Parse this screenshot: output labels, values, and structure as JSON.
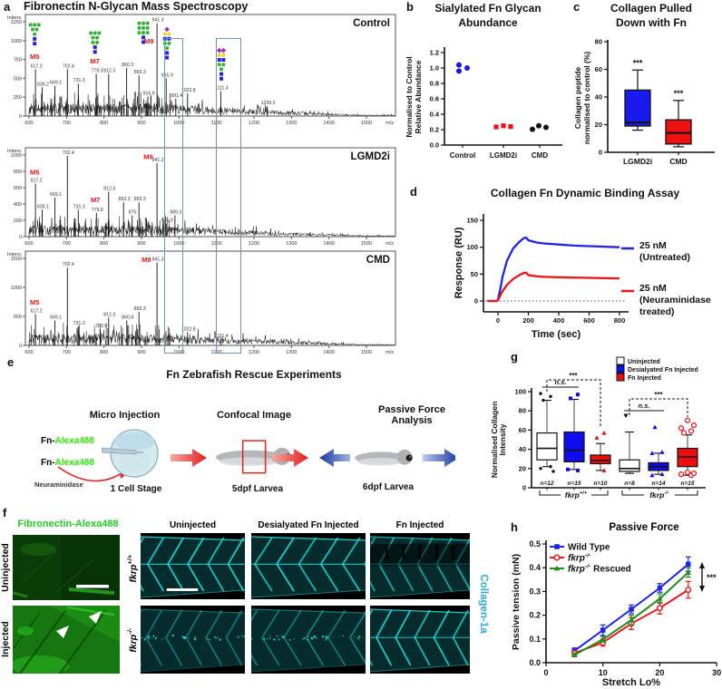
{
  "panels": {
    "a": {
      "label": "a",
      "title": "Fibronectin N-Glycan Mass Spectroscopy"
    },
    "b": {
      "label": "b",
      "title1": "Sialylated Fn Glycan",
      "title2": "Abundance"
    },
    "c": {
      "label": "c",
      "title1": "Collagen Pulled",
      "title2": "Down with Fn"
    },
    "d": {
      "label": "d"
    },
    "e": {
      "label": "e",
      "title": "Fn Zebrafish Rescue Experiments",
      "step1_title": "Micro Injection",
      "fn_pre": "Fn-",
      "fn_dye": "Alexa488",
      "enzyme": "Neuraminidase",
      "stage1": "1 Cell Stage",
      "step2_title": "Confocal Image",
      "stage2": "5dpf Larvea",
      "step3_title1": "Passive Force",
      "step3_title2": "Analysis",
      "stage3": "6dpf Larvea"
    },
    "f": {
      "label": "f",
      "green_title": "Fibronectin-Alexa488",
      "row1": "Uninjected",
      "row2": "Injected",
      "col1": "Uninjected",
      "col2": "Desialyated Fn Injected",
      "col3": "Fn Injected",
      "geno1_base": "fkrp",
      "geno1_sup": "+/+",
      "geno2_base": "fkrp",
      "geno2_sup": "-/-",
      "stain": "Collagen-1a"
    },
    "g": {
      "label": "g"
    },
    "h": {
      "label": "h"
    }
  },
  "glycan_shapes": {
    "M5": [
      [
        "g",
        "g",
        "g"
      ],
      [
        "g",
        "g"
      ],
      [
        "g"
      ],
      [
        "b"
      ],
      [
        "b"
      ]
    ],
    "M7": [
      [
        "g",
        "g",
        "g"
      ],
      [
        "g",
        "g"
      ],
      [
        "g",
        "g"
      ],
      [
        "b"
      ],
      [
        "b"
      ]
    ],
    "M9": [
      [
        "g",
        "g",
        "g"
      ],
      [
        "g",
        "g",
        "g"
      ],
      [
        "g",
        "g",
        "g"
      ],
      [
        "b"
      ],
      [
        "b"
      ]
    ],
    "S1": [
      [
        "p"
      ],
      [
        "y",
        "y"
      ],
      [
        "b",
        "b"
      ],
      [
        "g",
        "g"
      ],
      [
        "g"
      ],
      [
        "b"
      ],
      [
        "b"
      ]
    ],
    "S2": [
      [
        "p",
        "p"
      ],
      [
        "y",
        "y"
      ],
      [
        "b",
        "b"
      ],
      [
        "g",
        "g"
      ],
      [
        "g"
      ],
      [
        "b"
      ],
      [
        "b"
      ]
    ]
  },
  "chart_data": [
    {
      "id": "spec_control",
      "type": "line",
      "subtype": "mass_spectrum",
      "sample": "Control",
      "ylabel": "Intens.",
      "xlabel": "m/z",
      "xlim": [
        600,
        1580
      ],
      "ylim": [
        0,
        1250
      ],
      "yticks": [
        0,
        250,
        500,
        750,
        1000,
        1250
      ],
      "xticks": [
        600,
        700,
        800,
        900,
        1000,
        1100,
        1200,
        1300,
        1400,
        1500
      ],
      "peaks": [
        {
          "mz": 617.2,
          "i": 620,
          "label": "617.2"
        },
        {
          "mz": 635.2,
          "i": 380,
          "label": "635.2"
        },
        {
          "mz": 669.1,
          "i": 400,
          "label": "669.1"
        },
        {
          "mz": 702.4,
          "i": 620,
          "label": "702.4"
        },
        {
          "mz": 731.3,
          "i": 430,
          "label": "731.3"
        },
        {
          "mz": 779.3,
          "i": 560,
          "label": "779.3"
        },
        {
          "mz": 812.3,
          "i": 560,
          "label": "812.3"
        },
        {
          "mz": 860.3,
          "i": 640,
          "label": "860.3"
        },
        {
          "mz": 893.3,
          "i": 540,
          "label": "893.3"
        },
        {
          "mz": 916.9,
          "i": 260,
          "label": "916.9"
        },
        {
          "mz": 941.3,
          "i": 1230,
          "label": "941.3"
        },
        {
          "mz": 965.9,
          "i": 500,
          "label": "965.9"
        },
        {
          "mz": 991.4,
          "i": 230,
          "label": "991.4"
        },
        {
          "mz": 1022.8,
          "i": 300,
          "label": "1022.8"
        },
        {
          "mz": 1111.4,
          "i": 330,
          "label": "1111.4"
        },
        {
          "mz": 1235.5,
          "i": 130,
          "label": "1235.5"
        }
      ],
      "annotations": [
        {
          "text": "M5",
          "mz": 615,
          "v": 760
        },
        {
          "text": "M7",
          "mz": 776,
          "v": 700
        },
        {
          "text": "M9",
          "mz": 920,
          "v": 960
        }
      ],
      "glycans": [
        {
          "type": "M5",
          "mz": 615,
          "v": 1210
        },
        {
          "type": "M7",
          "mz": 776,
          "v": 1100
        },
        {
          "type": "M9",
          "mz": 905,
          "v": 1230
        },
        {
          "type": "S1",
          "mz": 968,
          "v": 1150
        },
        {
          "type": "S2",
          "mz": 1113,
          "v": 870
        }
      ]
    },
    {
      "id": "spec_lgmd2i",
      "type": "line",
      "subtype": "mass_spectrum",
      "sample": "LGMD2i",
      "ylabel": "Intens.",
      "xlabel": "m/z",
      "xlim": [
        600,
        1580
      ],
      "ylim": [
        0,
        1000
      ],
      "yticks": [
        0,
        200,
        400,
        600,
        800,
        1000
      ],
      "xticks": [
        600,
        700,
        800,
        900,
        1000,
        1100,
        1200,
        1300,
        1400,
        1500
      ],
      "peaks": [
        {
          "mz": 617.2,
          "i": 650,
          "label": "617.2"
        },
        {
          "mz": 635.1,
          "i": 330,
          "label": "635.1"
        },
        {
          "mz": 669.1,
          "i": 480,
          "label": "669.1"
        },
        {
          "mz": 702.4,
          "i": 990,
          "label": "702.4"
        },
        {
          "mz": 731.3,
          "i": 330,
          "label": "731.3"
        },
        {
          "mz": 779.8,
          "i": 290,
          "label": "779.8"
        },
        {
          "mz": 812.3,
          "i": 550,
          "label": "812.3"
        },
        {
          "mz": 852.2,
          "i": 420,
          "label": "852.2"
        },
        {
          "mz": 875.0,
          "i": 260,
          "label": "875."
        },
        {
          "mz": 893.3,
          "i": 420,
          "label": "893.3"
        },
        {
          "mz": 941.3,
          "i": 900,
          "label": "941.3"
        },
        {
          "mz": 965.9,
          "i": 160,
          "label": "965.9"
        },
        {
          "mz": 989.3,
          "i": 260,
          "label": "989.3"
        }
      ],
      "annotations": [
        {
          "text": "M5",
          "mz": 615,
          "v": 760
        },
        {
          "text": "M7",
          "mz": 777,
          "v": 420
        },
        {
          "text": "M9",
          "mz": 918,
          "v": 950
        }
      ],
      "glycans": []
    },
    {
      "id": "spec_cmd",
      "type": "line",
      "subtype": "mass_spectrum",
      "sample": "CMD",
      "ylabel": "Intens.",
      "xlabel": "m/z",
      "xlim": [
        600,
        1580
      ],
      "ylim": [
        0,
        1500
      ],
      "yticks": [
        0,
        500,
        1000,
        1500
      ],
      "xticks": [
        600,
        700,
        800,
        900,
        1000,
        1100,
        1200,
        1300,
        1400,
        1500
      ],
      "peaks": [
        {
          "mz": 617.2,
          "i": 540,
          "label": "617.2"
        },
        {
          "mz": 669.1,
          "i": 430,
          "label": "669.1"
        },
        {
          "mz": 702.4,
          "i": 1340,
          "label": "702.4"
        },
        {
          "mz": 731.3,
          "i": 330,
          "label": "731.3"
        },
        {
          "mz": 789.9,
          "i": 280,
          "label": "789.9"
        },
        {
          "mz": 812.3,
          "i": 480,
          "label": "812.3"
        },
        {
          "mz": 860.8,
          "i": 430,
          "label": "860.8"
        },
        {
          "mz": 893.3,
          "i": 580,
          "label": "893.3"
        },
        {
          "mz": 941.3,
          "i": 1430,
          "label": "941.3"
        },
        {
          "mz": 1022.8,
          "i": 230,
          "label": "1022.8"
        },
        {
          "mz": 1111.4,
          "i": 110,
          "label": "1111.4"
        }
      ],
      "annotations": [
        {
          "text": "M5",
          "mz": 615,
          "v": 700
        },
        {
          "text": "M9",
          "mz": 913,
          "v": 1440
        }
      ],
      "glycans": []
    },
    {
      "id": "b",
      "type": "scatter",
      "title": "Sialylated Fn Glycan Abundance",
      "ylabel_lines": [
        "Normalised to Control",
        "Relative Abundance"
      ],
      "ylim": [
        0,
        1.2
      ],
      "yticks": [
        "0.0",
        "0.2",
        "0.4",
        "0.6",
        "0.8",
        "1.0",
        "1.2"
      ],
      "categories": [
        "Control",
        "LGMD2i",
        "CMD"
      ],
      "series": [
        {
          "name": "Control",
          "color": "#1616e6",
          "marker": "circle",
          "values": [
            1.04,
            0.96,
            1.0
          ]
        },
        {
          "name": "LGMD2i",
          "color": "#ee1111",
          "marker": "square",
          "values": [
            0.235,
            0.25,
            0.24
          ]
        },
        {
          "name": "CMD",
          "color": "#111111",
          "marker": "circle",
          "values": [
            0.205,
            0.25,
            0.23
          ]
        }
      ]
    },
    {
      "id": "c",
      "type": "box",
      "title": "Collagen Pulled Down with Fn",
      "ylabel_lines": [
        "Collagen peptide",
        "normalised to control (%)"
      ],
      "ylim": [
        0,
        80
      ],
      "yticks": [
        0,
        20,
        40,
        60,
        80
      ],
      "boxes": [
        {
          "name": "LGMD2i",
          "color": "#1a1aee",
          "low": 16,
          "q1": 19,
          "median": 21.5,
          "q3": 45,
          "high": 59.5,
          "sig": "***"
        },
        {
          "name": "CMD",
          "color": "#ee1111",
          "low": 4,
          "q1": 6,
          "median": 14,
          "q3": 23.5,
          "high": 37.5,
          "sig": "***"
        }
      ]
    },
    {
      "id": "d",
      "type": "line",
      "title": "Collagen Fn Dynamic Binding Assay",
      "xlabel": "Time (sec)",
      "ylabel": "Response (RU)",
      "xlim": [
        -100,
        830
      ],
      "ylim": [
        -25,
        150
      ],
      "xticks": [
        0,
        200,
        400,
        600,
        800
      ],
      "yticks": [
        0,
        50,
        100,
        150
      ],
      "series": [
        {
          "name": "25 nM (Untreated)",
          "legend_lines": [
            "25 nM",
            "(Untreated)"
          ],
          "color": "#1c24e8",
          "points": [
            [
              -70,
              0
            ],
            [
              -10,
              0
            ],
            [
              0,
              2
            ],
            [
              15,
              22
            ],
            [
              30,
              45
            ],
            [
              60,
              75
            ],
            [
              100,
              98
            ],
            [
              140,
              110
            ],
            [
              170,
              117
            ],
            [
              185,
              118
            ],
            [
              200,
              113
            ],
            [
              250,
              109
            ],
            [
              300,
              107
            ],
            [
              400,
              105
            ],
            [
              500,
              103
            ],
            [
              600,
              102
            ],
            [
              700,
              101
            ],
            [
              800,
              100
            ]
          ]
        },
        {
          "name": "25 nM (Neuraminidase treated)",
          "legend_lines": [
            "25 nM",
            "(Neuraminidase",
            "treated)"
          ],
          "color": "#ee1515",
          "points": [
            [
              -70,
              0
            ],
            [
              -10,
              0
            ],
            [
              0,
              1
            ],
            [
              15,
              10
            ],
            [
              30,
              18
            ],
            [
              60,
              30
            ],
            [
              100,
              41
            ],
            [
              140,
              48
            ],
            [
              170,
              52
            ],
            [
              185,
              53
            ],
            [
              200,
              48
            ],
            [
              250,
              46
            ],
            [
              300,
              45
            ],
            [
              400,
              44
            ],
            [
              500,
              43.5
            ],
            [
              600,
              43
            ],
            [
              700,
              42.5
            ],
            [
              800,
              42
            ]
          ]
        }
      ]
    },
    {
      "id": "g",
      "type": "box",
      "ylabel_lines": [
        "Normalised Collagen",
        "Intensity"
      ],
      "ylim": [
        0,
        100
      ],
      "yticks": [
        0,
        20,
        40,
        60,
        80,
        100
      ],
      "legend": [
        {
          "label": "Uninjected",
          "color": "#ffffff"
        },
        {
          "label": "Desialyated Fn Injected",
          "color": "#0d0dee"
        },
        {
          "label": "Fn Injected",
          "color": "#ee0d0d"
        }
      ],
      "groups": [
        {
          "base": "fkrp",
          "sup": "+/+"
        },
        {
          "base": "fkrp",
          "sup": "-/-"
        }
      ],
      "boxes": [
        {
          "group": 0,
          "n": "n=12",
          "color": "#ffffff",
          "low": 22,
          "q1": 29,
          "median": 41,
          "q3": 57,
          "high": 91,
          "outliers_top": [
            91,
            95,
            98
          ],
          "outliers_bottom": [
            22,
            20,
            17
          ],
          "marker": "dot"
        },
        {
          "group": 0,
          "n": "n=15",
          "color": "#0d0dee",
          "low": 19,
          "q1": 27,
          "median": 39,
          "q3": 58,
          "high": 92,
          "outliers_top": [
            93,
            97
          ],
          "outliers_bottom": [
            18,
            19
          ],
          "marker": "square"
        },
        {
          "group": 0,
          "n": "n=10",
          "color": "#ee0d0d",
          "low": 18,
          "q1": 25,
          "median": 28.5,
          "q3": 34,
          "high": 46,
          "outliers_top": [
            52,
            57
          ],
          "outliers_bottom": [
            18
          ],
          "marker": "triangle"
        },
        {
          "group": 1,
          "n": "n=8",
          "color": "#ffffff",
          "low": 15,
          "q1": 17,
          "median": 20,
          "q3": 29,
          "high": 58,
          "outliers_top": [
            75
          ],
          "outliers_bottom": [],
          "marker": "tri_down"
        },
        {
          "group": 1,
          "n": "n=14",
          "color": "#0d0dee",
          "low": 14,
          "q1": 18,
          "median": 22,
          "q3": 26,
          "high": 36,
          "outliers_top": [
            63,
            37,
            36
          ],
          "outliers_bottom": [
            14,
            13
          ],
          "marker": "triangle"
        },
        {
          "group": 1,
          "n": "n=15",
          "color": "#ee0d0d",
          "low": 13,
          "q1": 22,
          "median": 32,
          "q3": 41,
          "high": 55,
          "outliers_top": [
            57,
            59,
            62,
            65,
            70
          ],
          "outliers_bottom": [
            13,
            14,
            15,
            16
          ],
          "marker": "circle_open"
        }
      ],
      "sig": [
        {
          "label": "n.s.",
          "from": 0,
          "to": 1,
          "style": "solid"
        },
        {
          "label": "***",
          "from": 0,
          "to": 2,
          "style": "dashed"
        },
        {
          "label": "n.s.",
          "from": 3,
          "to": 4,
          "style": "solid"
        },
        {
          "label": "***",
          "from": 3,
          "to": 5,
          "style": "dashed"
        }
      ]
    },
    {
      "id": "h",
      "type": "line",
      "title": "Passive Force",
      "xlabel": "Stretch Lo%",
      "ylabel": "Passive tension (mN)",
      "xlim": [
        0,
        30
      ],
      "ylim": [
        0,
        0.5
      ],
      "xticks": [
        0,
        10,
        20,
        30
      ],
      "yticks": [
        "0.0",
        "0.1",
        "0.2",
        "0.3",
        "0.4",
        "0.5"
      ],
      "x": [
        5,
        10,
        15,
        20,
        25
      ],
      "series": [
        {
          "name": "Wild Type",
          "base": "Wild Type",
          "sup": "",
          "suffix": "",
          "color": "#1c24e8",
          "marker": "square",
          "values": [
            0.05,
            0.137,
            0.225,
            0.315,
            0.415
          ],
          "errors": [
            0.012,
            0.022,
            0.018,
            0.018,
            0.03
          ]
        },
        {
          "name": "fkrp-/-",
          "base": "fkrp",
          "sup": "-/-",
          "suffix": "",
          "color": "#ee1515",
          "marker": "circle_open",
          "values": [
            0.04,
            0.085,
            0.165,
            0.23,
            0.307
          ],
          "errors": [
            0.008,
            0.015,
            0.025,
            0.025,
            0.035
          ]
        },
        {
          "name": "fkrp-/- Rescued",
          "base": "fkrp",
          "sup": "-/-",
          "suffix": " Rescued",
          "color": "#1e8c1e",
          "marker": "triangle",
          "values": [
            0.033,
            0.098,
            0.18,
            0.27,
            0.38
          ],
          "errors": [
            0.008,
            0.012,
            0.02,
            0.02,
            0.02
          ]
        }
      ],
      "sig": "***"
    }
  ]
}
